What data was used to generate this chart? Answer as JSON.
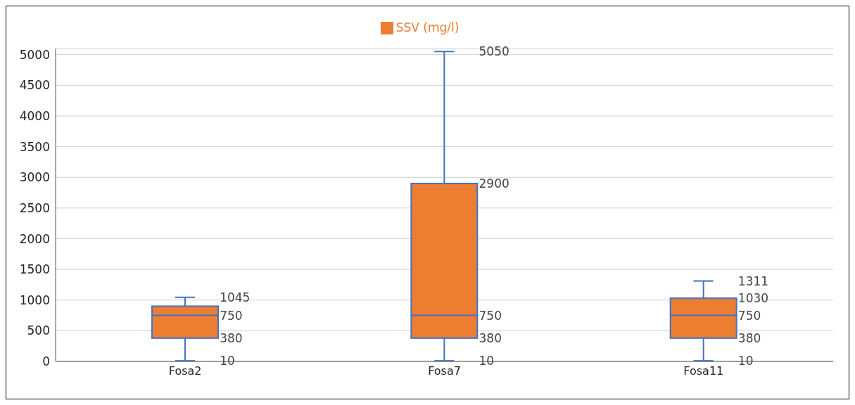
{
  "chart_data": {
    "type": "box",
    "categories": [
      "Fosa2",
      "Fosa7",
      "Fosa11"
    ],
    "series": [
      {
        "name": "SSV (mg/l)",
        "color": "#ed7d31",
        "boxes": [
          {
            "low": 10,
            "q1": 380,
            "median": 750,
            "q3": 900,
            "high": 1045
          },
          {
            "low": 10,
            "q1": 380,
            "median": 750,
            "q3": 2900,
            "high": 5050
          },
          {
            "low": 10,
            "q1": 380,
            "median": 750,
            "q3": 1030,
            "high": 1311
          }
        ]
      }
    ],
    "ylim": [
      0,
      5100
    ],
    "yticks": [
      0,
      500,
      1000,
      1500,
      2000,
      2500,
      3000,
      3500,
      4000,
      4500,
      5000
    ],
    "grid": "y",
    "legend": "top",
    "annotations": [
      {
        "text": "1045",
        "x": "Fosa2",
        "y": 1045
      },
      {
        "text": "750",
        "x": "Fosa2",
        "y": 750
      },
      {
        "text": "380",
        "x": "Fosa2",
        "y": 380
      },
      {
        "text": "10",
        "x": "Fosa2",
        "y": 10
      },
      {
        "text": "5050",
        "x": "Fosa7",
        "y": 5050
      },
      {
        "text": "2900",
        "x": "Fosa7",
        "y": 2900
      },
      {
        "text": "750",
        "x": "Fosa7",
        "y": 750
      },
      {
        "text": "380",
        "x": "Fosa7",
        "y": 380
      },
      {
        "text": "10",
        "x": "Fosa7",
        "y": 10
      },
      {
        "text": "1311",
        "x": "Fosa11",
        "y": 1311
      },
      {
        "text": "1030",
        "x": "Fosa11",
        "y": 1030
      },
      {
        "text": "750",
        "x": "Fosa11",
        "y": 750
      },
      {
        "text": "380",
        "x": "Fosa11",
        "y": 380
      },
      {
        "text": "10",
        "x": "Fosa11",
        "y": 10
      }
    ]
  }
}
